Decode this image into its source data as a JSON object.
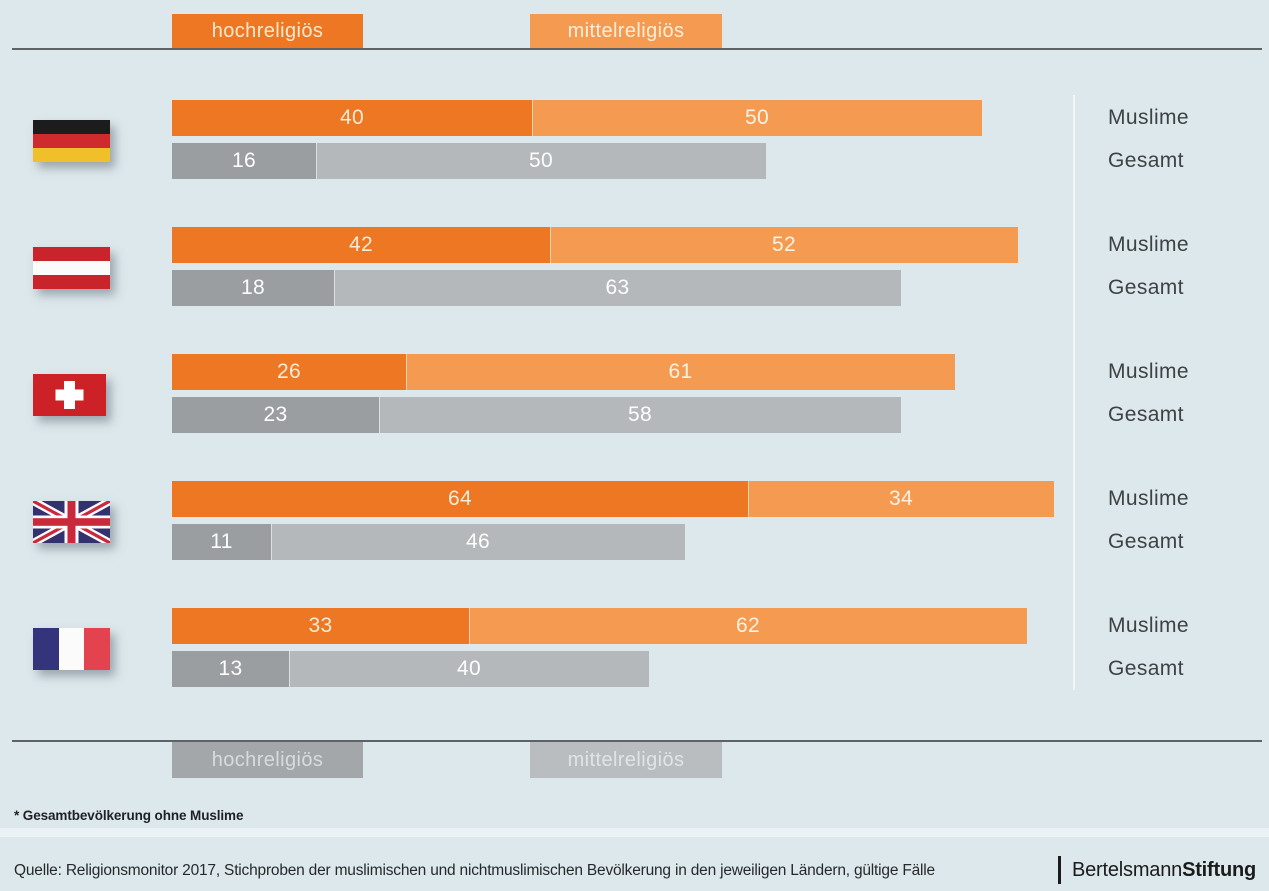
{
  "colors": {
    "background": "#dde8ec",
    "rule_line": "#5e6466",
    "separator_line": "#f2f6f8",
    "orange_dark": "#ed7723",
    "orange_light": "#f59b51",
    "gray_dark": "#9b9ea1",
    "gray_light": "#b5b8ba"
  },
  "legend_top": {
    "items": [
      {
        "label": "hochreligiös",
        "color": "#ed7723",
        "text_color": "#fbe9cf"
      },
      {
        "label": "mittelreligiös",
        "color": "#f59b51",
        "text_color": "#fdeeda"
      }
    ]
  },
  "legend_bottom": {
    "items": [
      {
        "label": "hochreligiös",
        "color": "#a4a7a9",
        "text_color": "#d8dbdc"
      },
      {
        "label": "mittelreligiös",
        "color": "#babdbf",
        "text_color": "#e1e4e5"
      }
    ]
  },
  "chart_data": {
    "type": "bar",
    "orientation": "horizontal",
    "stacked": true,
    "unit": "percent",
    "xlim": [
      0,
      100
    ],
    "segments": [
      "hochreligiös",
      "mittelreligiös"
    ],
    "row_labels": [
      "Muslime",
      "Gesamt"
    ],
    "muslime_colors": [
      "#ed7723",
      "#f59b51"
    ],
    "muslime_text_colors": [
      "#f9ecd6",
      "#fdf2e3"
    ],
    "gesamt_colors": [
      "#9b9ea1",
      "#b5b8ba"
    ],
    "gesamt_text_colors": [
      "#fdfdfd",
      "#fdfdfd"
    ],
    "countries": [
      {
        "flag": "germany-flag",
        "muslime": [
          40,
          50
        ],
        "gesamt": [
          16,
          50
        ]
      },
      {
        "flag": "austria-flag",
        "muslime": [
          42,
          52
        ],
        "gesamt": [
          18,
          63
        ]
      },
      {
        "flag": "switzerland-flag",
        "muslime": [
          26,
          61
        ],
        "gesamt": [
          23,
          58
        ]
      },
      {
        "flag": "united-kingdom-flag",
        "muslime": [
          64,
          34
        ],
        "gesamt": [
          11,
          46
        ]
      },
      {
        "flag": "france-flag",
        "muslime": [
          33,
          62
        ],
        "gesamt": [
          13,
          40
        ]
      }
    ]
  },
  "footnote": "* Gesamtbevölkerung ohne Muslime",
  "source": "Quelle: Religionsmonitor 2017, Stichproben der muslimischen und nichtmuslimischen Bevölkerung in den jeweiligen Ländern, gültige Fälle",
  "logo": {
    "name_regular": "Bertelsmann",
    "name_bold": "Stiftung"
  }
}
